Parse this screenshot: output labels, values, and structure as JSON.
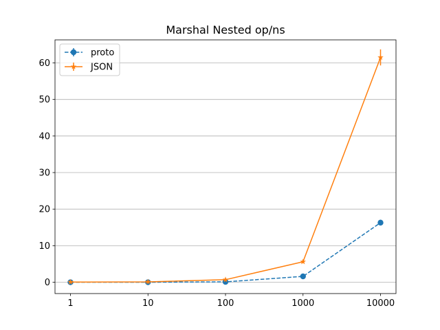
{
  "chart_data": {
    "type": "line",
    "title": "Marshal Nested op/ns",
    "xlabel": "",
    "ylabel": "",
    "categories": [
      "1",
      "10",
      "100",
      "1000",
      "10000"
    ],
    "y_ticks": [
      0,
      10,
      20,
      30,
      40,
      50,
      60
    ],
    "ylim": [
      -3.1,
      66.3
    ],
    "grid": "y",
    "legend_position": "top-left",
    "series": [
      {
        "name": "proto",
        "values": [
          0.0,
          0.0,
          0.1,
          1.6,
          16.3
        ],
        "errors": [
          0.1,
          0.1,
          0.1,
          0.3,
          0.8
        ],
        "color": "#1f77b4",
        "linestyle": "dashed",
        "marker": "circle"
      },
      {
        "name": "JSON",
        "values": [
          0.05,
          0.1,
          0.7,
          5.6,
          61.5
        ],
        "errors": [
          0.1,
          0.1,
          0.1,
          0.3,
          2.2
        ],
        "color": "#ff7f0e",
        "linestyle": "solid",
        "marker": "star"
      }
    ]
  }
}
